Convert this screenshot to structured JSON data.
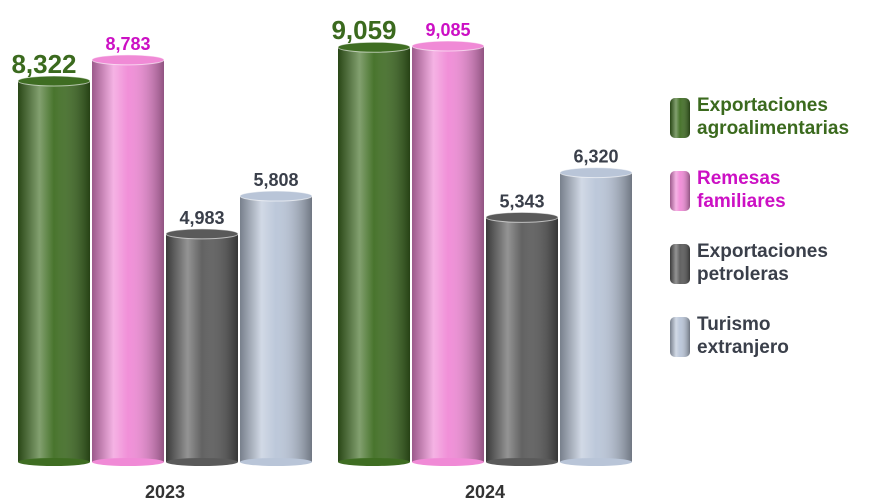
{
  "chart_data": {
    "type": "bar",
    "categories": [
      "2023",
      "2024"
    ],
    "series": [
      {
        "name": "Exportaciones agroalimentarias",
        "color": "#3f6d22",
        "label_color": "#3b6a1e",
        "values": [
          8322,
          9059
        ],
        "value_labels": [
          "8,322",
          "9,059"
        ]
      },
      {
        "name": "Remesas familiares",
        "color": "#f08ad6",
        "label_color": "#cc10c4",
        "values": [
          8783,
          9085
        ],
        "value_labels": [
          "8,783",
          "9,085"
        ]
      },
      {
        "name": "Exportaciones petroleras",
        "color": "#5a5a5a",
        "label_color": "#3a3f4a",
        "values": [
          4983,
          5343
        ],
        "value_labels": [
          "4,983",
          "5,343"
        ]
      },
      {
        "name": "Turismo extranjero",
        "color": "#b9c5d8",
        "label_color": "#3a3f4a",
        "values": [
          5808,
          6320
        ],
        "value_labels": [
          "5,808",
          "6,320"
        ]
      }
    ]
  }
}
